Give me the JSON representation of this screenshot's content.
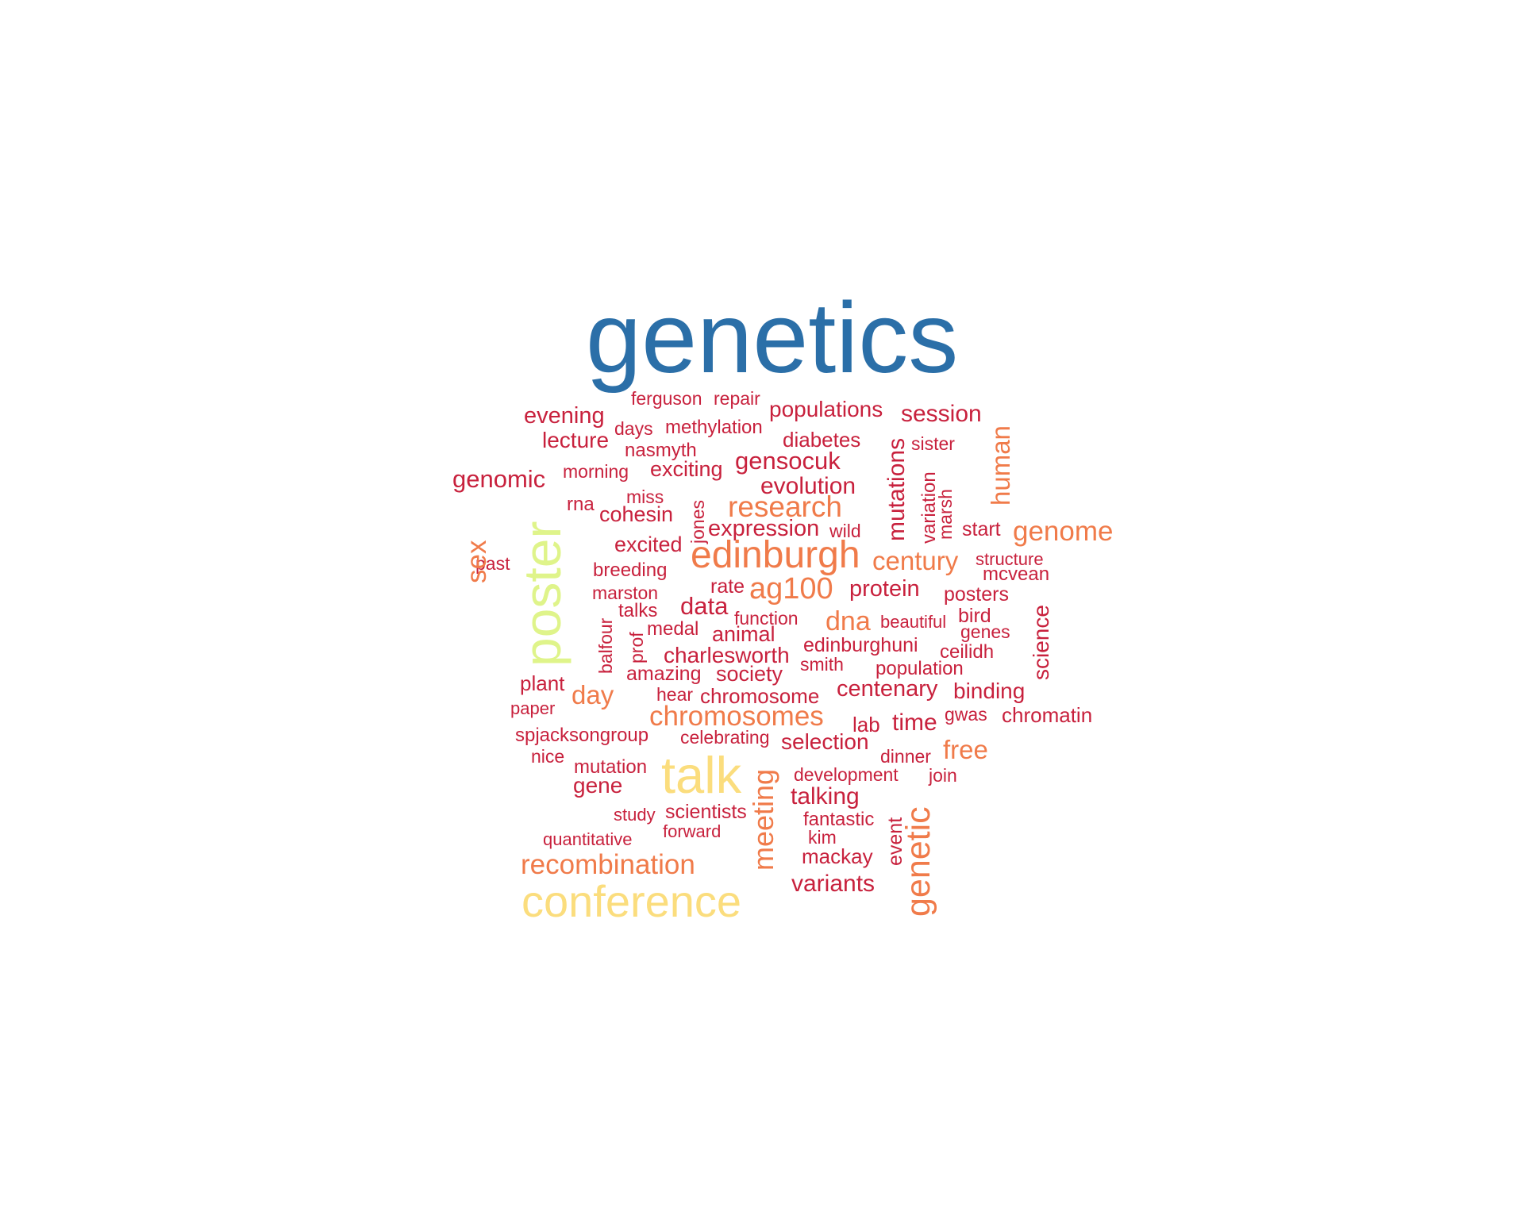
{
  "colors": {
    "blue": "#2b6fa8",
    "red": "#c8213d",
    "orange": "#f07b4a",
    "yellow": "#fbdd7d",
    "green": "#dff48a"
  },
  "words": [
    {
      "text": "genetics",
      "color": "blue"
    },
    {
      "text": "ferguson",
      "color": "red"
    },
    {
      "text": "repair",
      "color": "red"
    },
    {
      "text": "populations",
      "color": "red"
    },
    {
      "text": "session",
      "color": "red"
    },
    {
      "text": "evening",
      "color": "red"
    },
    {
      "text": "days",
      "color": "red"
    },
    {
      "text": "methylation",
      "color": "red"
    },
    {
      "text": "lecture",
      "color": "red"
    },
    {
      "text": "diabetes",
      "color": "red"
    },
    {
      "text": "sister",
      "color": "red"
    },
    {
      "text": "nasmyth",
      "color": "red"
    },
    {
      "text": "gensocuk",
      "color": "red"
    },
    {
      "text": "morning",
      "color": "red"
    },
    {
      "text": "exciting",
      "color": "red"
    },
    {
      "text": "genomic",
      "color": "red"
    },
    {
      "text": "evolution",
      "color": "red"
    },
    {
      "text": "miss",
      "color": "red"
    },
    {
      "text": "rna",
      "color": "red"
    },
    {
      "text": "cohesin",
      "color": "red"
    },
    {
      "text": "research",
      "color": "orange"
    },
    {
      "text": "start",
      "color": "red"
    },
    {
      "text": "genome",
      "color": "orange"
    },
    {
      "text": "expression",
      "color": "red"
    },
    {
      "text": "wild",
      "color": "red"
    },
    {
      "text": "excited",
      "color": "red"
    },
    {
      "text": "edinburgh",
      "color": "orange"
    },
    {
      "text": "century",
      "color": "orange"
    },
    {
      "text": "past",
      "color": "red"
    },
    {
      "text": "structure",
      "color": "red"
    },
    {
      "text": "breeding",
      "color": "red"
    },
    {
      "text": "mcvean",
      "color": "red"
    },
    {
      "text": "rate",
      "color": "red"
    },
    {
      "text": "ag100",
      "color": "orange"
    },
    {
      "text": "protein",
      "color": "red"
    },
    {
      "text": "marston",
      "color": "red"
    },
    {
      "text": "posters",
      "color": "red"
    },
    {
      "text": "data",
      "color": "red"
    },
    {
      "text": "talks",
      "color": "red"
    },
    {
      "text": "function",
      "color": "red"
    },
    {
      "text": "dna",
      "color": "orange"
    },
    {
      "text": "beautiful",
      "color": "red"
    },
    {
      "text": "bird",
      "color": "red"
    },
    {
      "text": "medal",
      "color": "red"
    },
    {
      "text": "animal",
      "color": "red"
    },
    {
      "text": "genes",
      "color": "red"
    },
    {
      "text": "edinburghuni",
      "color": "red"
    },
    {
      "text": "charlesworth",
      "color": "red"
    },
    {
      "text": "ceilidh",
      "color": "red"
    },
    {
      "text": "smith",
      "color": "red"
    },
    {
      "text": "amazing",
      "color": "red"
    },
    {
      "text": "society",
      "color": "red"
    },
    {
      "text": "population",
      "color": "red"
    },
    {
      "text": "plant",
      "color": "red"
    },
    {
      "text": "centenary",
      "color": "red"
    },
    {
      "text": "binding",
      "color": "red"
    },
    {
      "text": "day",
      "color": "orange"
    },
    {
      "text": "hear",
      "color": "red"
    },
    {
      "text": "chromosome",
      "color": "red"
    },
    {
      "text": "paper",
      "color": "red"
    },
    {
      "text": "chromosomes",
      "color": "orange"
    },
    {
      "text": "gwas",
      "color": "red"
    },
    {
      "text": "chromatin",
      "color": "red"
    },
    {
      "text": "lab",
      "color": "red"
    },
    {
      "text": "time",
      "color": "red"
    },
    {
      "text": "spjacksongroup",
      "color": "red"
    },
    {
      "text": "celebrating",
      "color": "red"
    },
    {
      "text": "selection",
      "color": "red"
    },
    {
      "text": "nice",
      "color": "red"
    },
    {
      "text": "dinner",
      "color": "red"
    },
    {
      "text": "free",
      "color": "orange"
    },
    {
      "text": "mutation",
      "color": "red"
    },
    {
      "text": "talk",
      "color": "yellow"
    },
    {
      "text": "development",
      "color": "red"
    },
    {
      "text": "join",
      "color": "red"
    },
    {
      "text": "gene",
      "color": "red"
    },
    {
      "text": "talking",
      "color": "red"
    },
    {
      "text": "study",
      "color": "red"
    },
    {
      "text": "scientists",
      "color": "red"
    },
    {
      "text": "fantastic",
      "color": "red"
    },
    {
      "text": "forward",
      "color": "red"
    },
    {
      "text": "kim",
      "color": "red"
    },
    {
      "text": "quantitative",
      "color": "red"
    },
    {
      "text": "mackay",
      "color": "red"
    },
    {
      "text": "recombination",
      "color": "orange"
    },
    {
      "text": "variants",
      "color": "red"
    },
    {
      "text": "conference",
      "color": "yellow"
    },
    {
      "text": "poster",
      "color": "green"
    },
    {
      "text": "sex",
      "color": "orange"
    },
    {
      "text": "jones",
      "color": "red"
    },
    {
      "text": "mutations",
      "color": "red"
    },
    {
      "text": "variation",
      "color": "red"
    },
    {
      "text": "marsh",
      "color": "red"
    },
    {
      "text": "human",
      "color": "orange"
    },
    {
      "text": "science",
      "color": "red"
    },
    {
      "text": "balfour",
      "color": "red"
    },
    {
      "text": "prof",
      "color": "red"
    },
    {
      "text": "meeting",
      "color": "orange"
    },
    {
      "text": "genetic",
      "color": "orange"
    },
    {
      "text": "event",
      "color": "red"
    }
  ]
}
